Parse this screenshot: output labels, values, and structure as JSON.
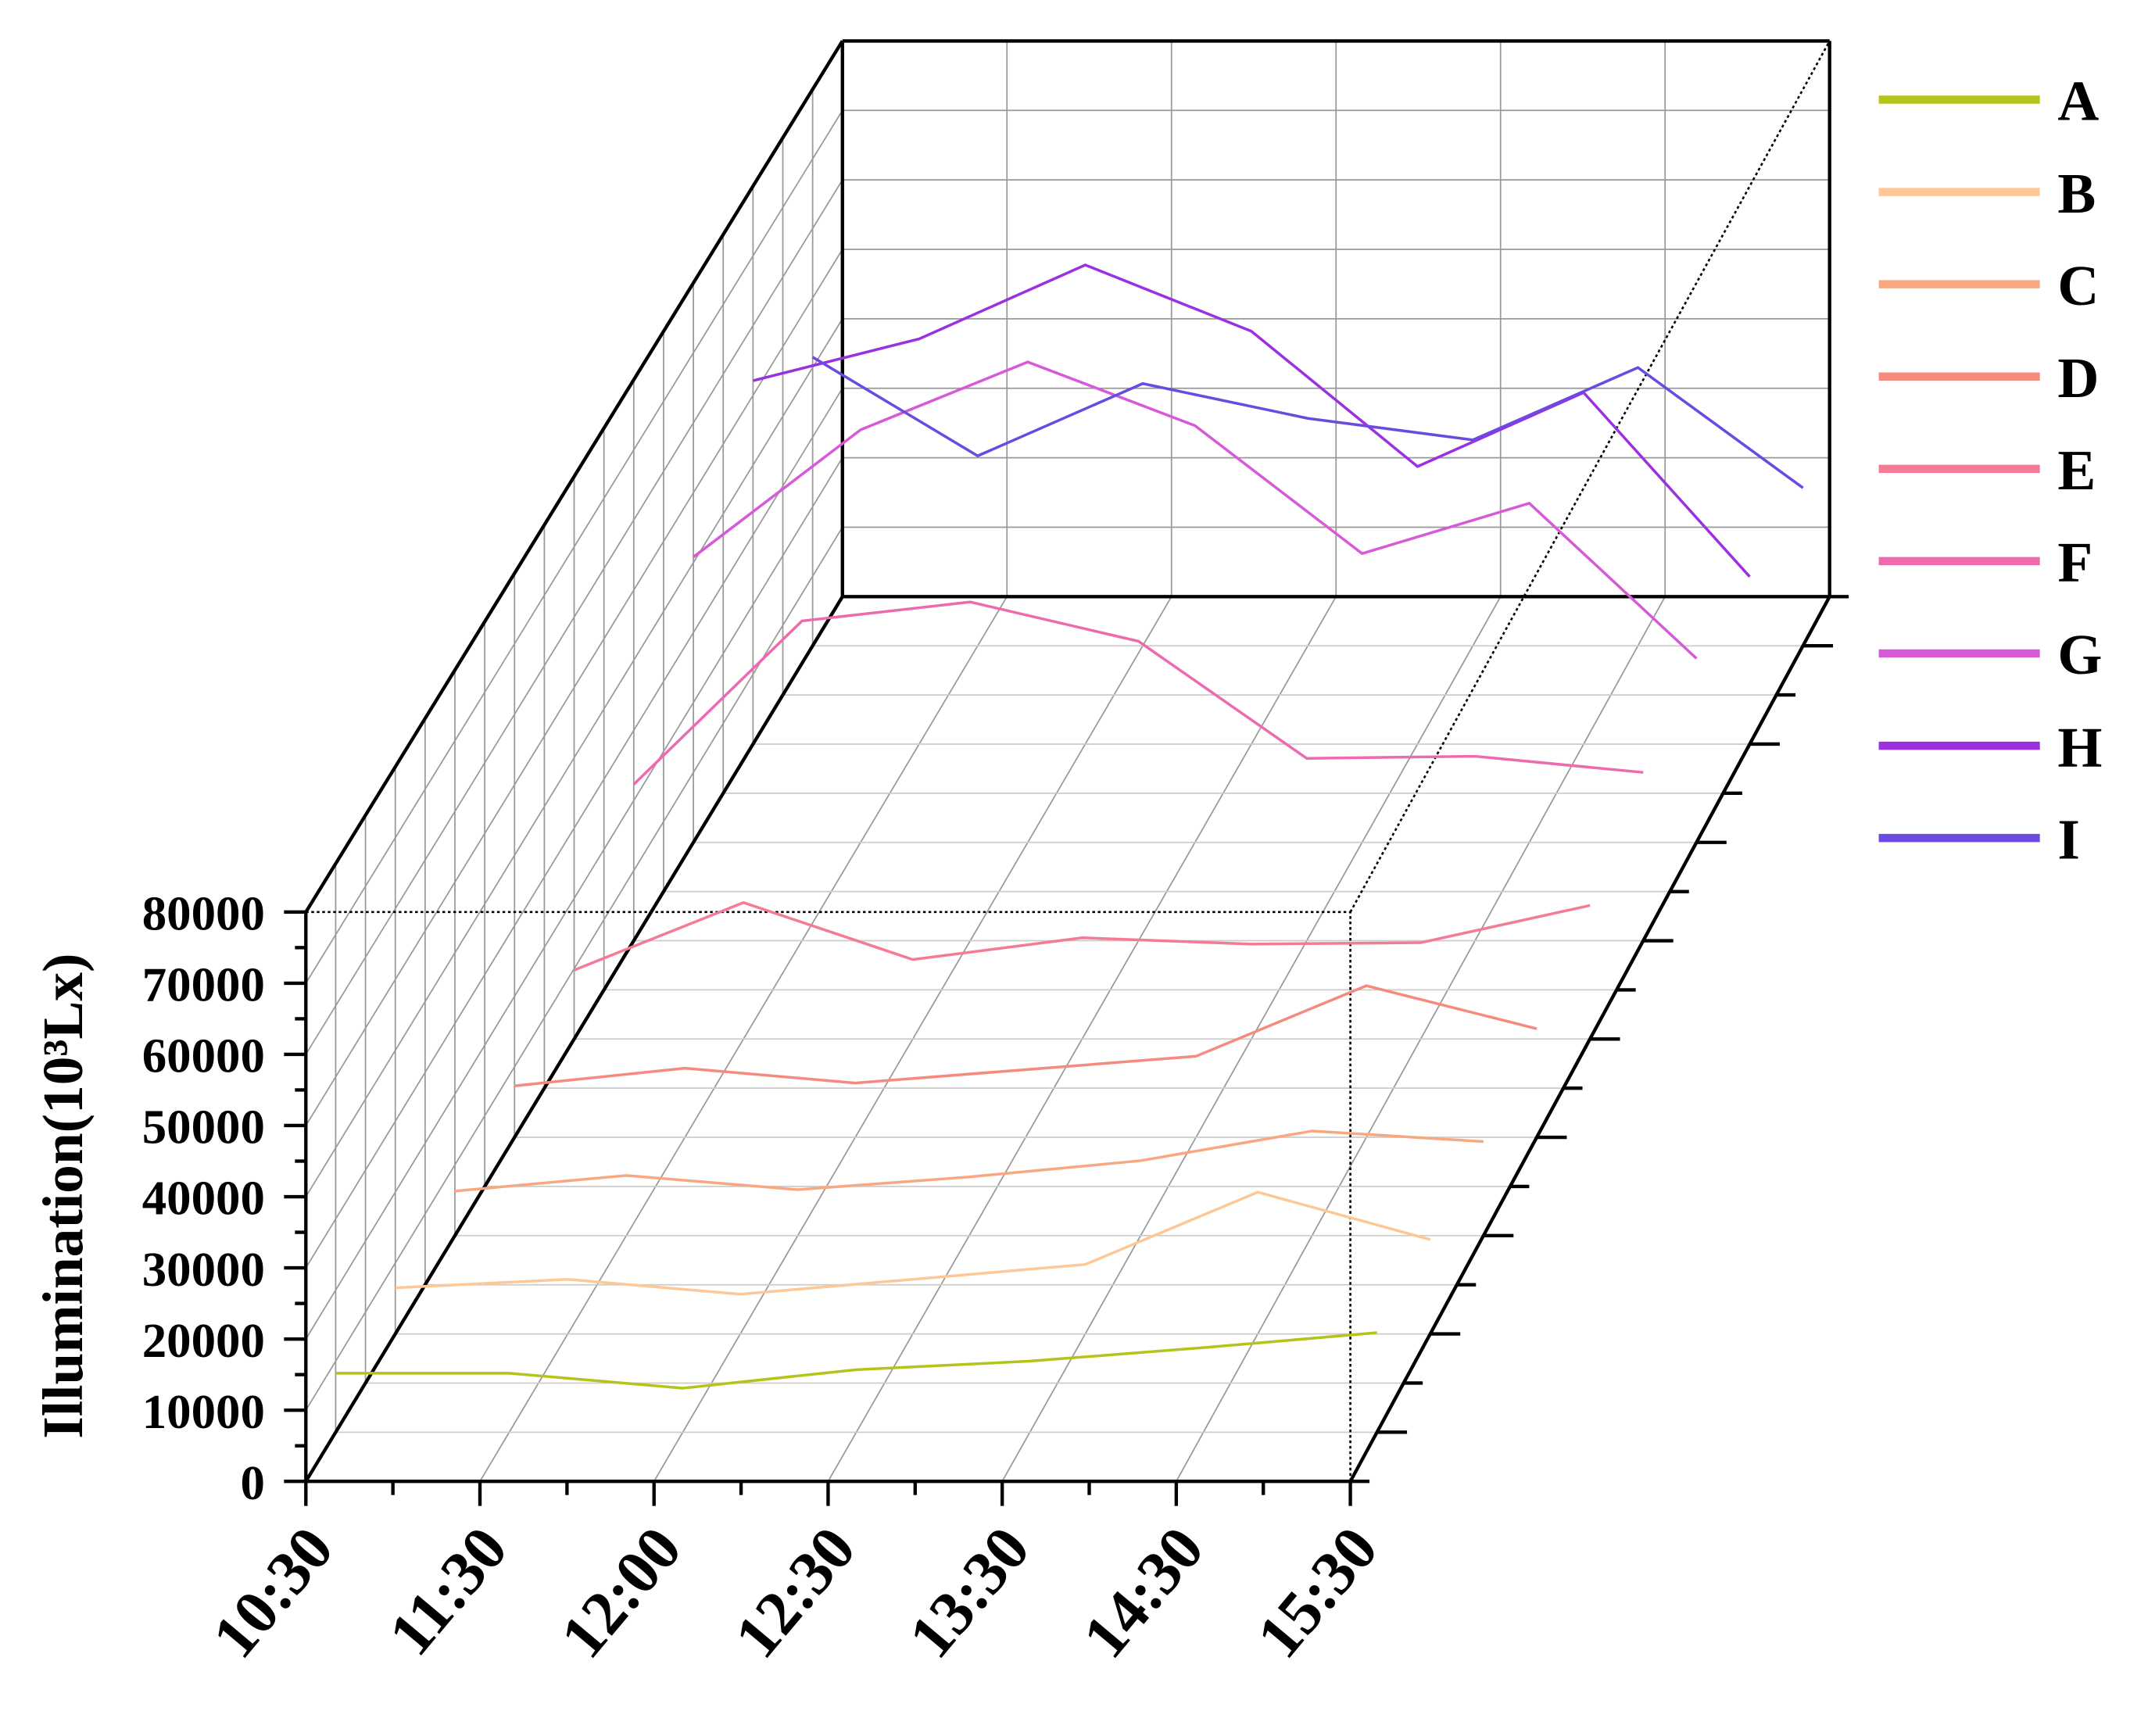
{
  "chart_data": {
    "type": "line3d",
    "y_label": "Illumination(10³Lx)",
    "categories": [
      "10:30",
      "11:30",
      "12:00",
      "12:30",
      "13:30",
      "14:30",
      "15:30"
    ],
    "ylim": [
      0,
      80000
    ],
    "yticks": [
      0,
      10000,
      20000,
      30000,
      40000,
      50000,
      60000,
      70000,
      80000
    ],
    "grid": true,
    "legend": "right",
    "series": [
      {
        "name": "A",
        "color": "#b5c41a",
        "values": [
          8300,
          8300,
          6200,
          8800,
          10000,
          11900,
          14000
        ]
      },
      {
        "name": "B",
        "color": "#fdc896",
        "values": [
          6500,
          7700,
          5600,
          7700,
          9800,
          20000,
          13300
        ]
      },
      {
        "name": "C",
        "color": "#f8a880",
        "values": [
          6300,
          8500,
          6500,
          8300,
          10600,
          14800,
          13300
        ]
      },
      {
        "name": "D",
        "color": "#f58a7e",
        "values": [
          7300,
          9800,
          7700,
          9600,
          11500,
          21500,
          15400
        ]
      },
      {
        "name": "E",
        "color": "#f47a96",
        "values": [
          9800,
          19400,
          11300,
          14400,
          13500,
          13700,
          19000
        ]
      },
      {
        "name": "F",
        "color": "#ee6aae",
        "values": [
          22300,
          45600,
          48300,
          42700,
          26000,
          26300,
          24000
        ]
      },
      {
        "name": "G",
        "color": "#d65ad8",
        "values": [
          40800,
          59000,
          68700,
          59600,
          41300,
          48500,
          26300
        ]
      },
      {
        "name": "H",
        "color": "#9b30e0",
        "values": [
          52100,
          58100,
          68700,
          59200,
          39800,
          50400,
          24000
        ]
      },
      {
        "name": "I",
        "color": "#6a4ae0",
        "values": [
          41500,
          27300,
          37700,
          32700,
          29600,
          40000,
          22700
        ]
      }
    ]
  }
}
